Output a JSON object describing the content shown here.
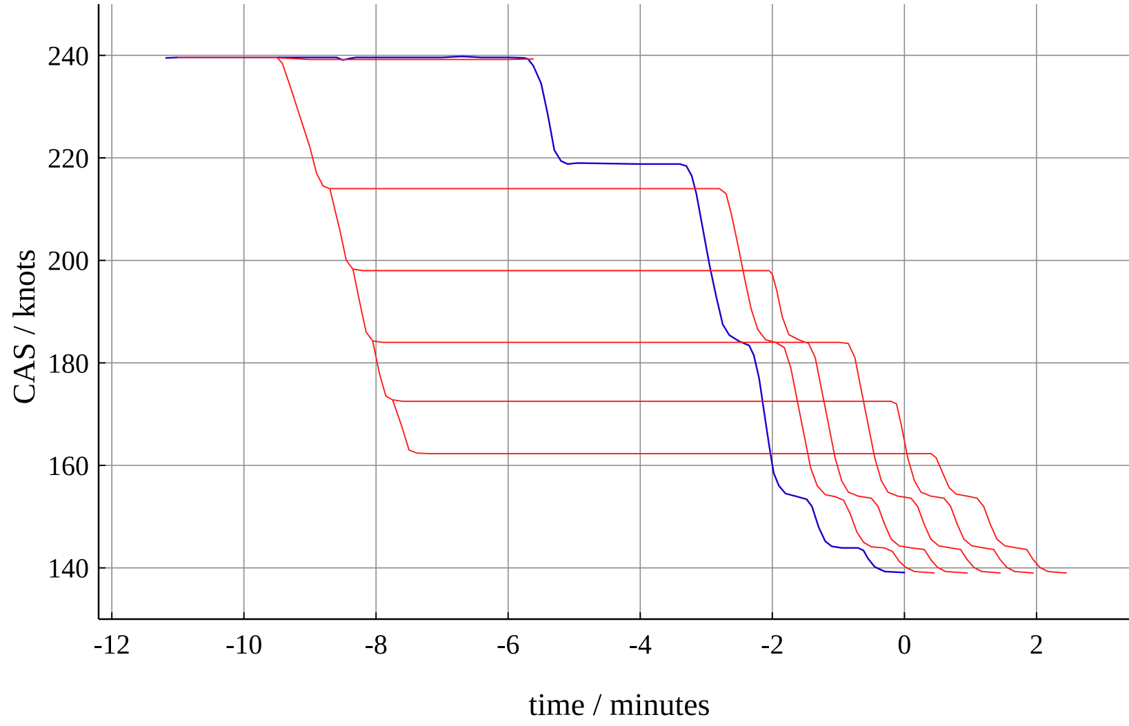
{
  "chart_data": {
    "type": "line",
    "title": "",
    "xlabel": "time / minutes",
    "ylabel": "CAS / knots",
    "xlim": [
      -12.2,
      3.4
    ],
    "ylim": [
      130,
      250
    ],
    "xticks": [
      -12,
      -10,
      -8,
      -6,
      -4,
      -2,
      0,
      2
    ],
    "xtick_labels": [
      "-12",
      "-10",
      "-8",
      "-6",
      "-4",
      "-2",
      "0",
      "2"
    ],
    "yticks": [
      140,
      160,
      180,
      200,
      220,
      240
    ],
    "ytick_labels": [
      "140",
      "160",
      "180",
      "200",
      "220",
      "240"
    ],
    "grid": true,
    "legend": "none",
    "colors": {
      "grid": "#8c8c8c",
      "axis": "#000000",
      "blue": "#1a00cc",
      "red": "#ff1a1a"
    },
    "series": [
      {
        "color": "blue",
        "points": [
          [
            -11.18,
            239.5
          ],
          [
            -11.0,
            239.6
          ],
          [
            -10.0,
            239.6
          ],
          [
            -9.0,
            239.6
          ],
          [
            -8.6,
            239.6
          ],
          [
            -8.5,
            239.1
          ],
          [
            -8.4,
            239.4
          ],
          [
            -8.3,
            239.6
          ],
          [
            -7.0,
            239.6
          ],
          [
            -6.7,
            239.8
          ],
          [
            -6.4,
            239.6
          ],
          [
            -6.0,
            239.6
          ],
          [
            -5.75,
            239.5
          ],
          [
            -5.7,
            239.3
          ],
          [
            -5.62,
            238.0
          ],
          [
            -5.5,
            234.5
          ],
          [
            -5.4,
            228.5
          ],
          [
            -5.3,
            221.5
          ],
          [
            -5.2,
            219.4
          ],
          [
            -5.1,
            218.8
          ],
          [
            -4.95,
            219.0
          ],
          [
            -4.5,
            218.9
          ],
          [
            -4.0,
            218.8
          ],
          [
            -3.4,
            218.8
          ],
          [
            -3.3,
            218.4
          ],
          [
            -3.22,
            216.5
          ],
          [
            -3.15,
            213.0
          ],
          [
            -3.05,
            206.0
          ],
          [
            -2.95,
            199.0
          ],
          [
            -2.85,
            193.0
          ],
          [
            -2.75,
            187.5
          ],
          [
            -2.65,
            185.4
          ],
          [
            -2.5,
            184.2
          ],
          [
            -2.35,
            183.4
          ],
          [
            -2.28,
            181.5
          ],
          [
            -2.2,
            177.0
          ],
          [
            -2.12,
            170.0
          ],
          [
            -2.05,
            164.0
          ],
          [
            -1.98,
            158.5
          ],
          [
            -1.9,
            156.0
          ],
          [
            -1.8,
            154.5
          ],
          [
            -1.65,
            154.0
          ],
          [
            -1.48,
            153.4
          ],
          [
            -1.4,
            152.0
          ],
          [
            -1.3,
            148.0
          ],
          [
            -1.2,
            145.2
          ],
          [
            -1.1,
            144.2
          ],
          [
            -0.95,
            143.9
          ],
          [
            -0.7,
            143.9
          ],
          [
            -0.62,
            143.4
          ],
          [
            -0.55,
            141.8
          ],
          [
            -0.45,
            140.2
          ],
          [
            -0.3,
            139.3
          ],
          [
            0.0,
            139.1
          ]
        ]
      },
      {
        "color": "red",
        "points": [
          [
            -9.45,
            239.5
          ],
          [
            -9.0,
            239.2
          ],
          [
            -8.0,
            239.2
          ],
          [
            -7.0,
            239.2
          ],
          [
            -6.0,
            239.2
          ],
          [
            -5.62,
            239.3
          ]
        ]
      },
      {
        "color": "red",
        "points": [
          [
            -11.0,
            239.6
          ],
          [
            -9.5,
            239.6
          ],
          [
            -9.42,
            238.5
          ],
          [
            -9.3,
            234.0
          ],
          [
            -9.0,
            222.0
          ],
          [
            -8.9,
            217.0
          ],
          [
            -8.8,
            214.5
          ],
          [
            -8.7,
            214.0
          ],
          [
            -6.0,
            214.0
          ],
          [
            -4.0,
            214.0
          ],
          [
            -2.8,
            214.0
          ],
          [
            -2.7,
            213.0
          ],
          [
            -2.62,
            209.0
          ],
          [
            -2.52,
            203.0
          ],
          [
            -2.42,
            196.5
          ],
          [
            -2.32,
            190.5
          ],
          [
            -2.22,
            186.5
          ],
          [
            -2.1,
            184.5
          ],
          [
            -1.95,
            184.0
          ],
          [
            -1.82,
            183.0
          ],
          [
            -1.72,
            179.0
          ],
          [
            -1.62,
            172.5
          ],
          [
            -1.52,
            166.0
          ],
          [
            -1.42,
            159.5
          ],
          [
            -1.32,
            156.0
          ],
          [
            -1.2,
            154.3
          ],
          [
            -1.05,
            153.9
          ],
          [
            -0.92,
            153.2
          ],
          [
            -0.82,
            150.5
          ],
          [
            -0.72,
            147.0
          ],
          [
            -0.62,
            145.0
          ],
          [
            -0.5,
            144.1
          ],
          [
            -0.3,
            143.9
          ],
          [
            -0.18,
            143.2
          ],
          [
            -0.08,
            141.3
          ],
          [
            0.02,
            140.1
          ],
          [
            0.15,
            139.3
          ],
          [
            0.45,
            139.0
          ]
        ]
      },
      {
        "color": "red",
        "points": [
          [
            -8.7,
            214.0
          ],
          [
            -8.55,
            206.0
          ],
          [
            -8.45,
            200.0
          ],
          [
            -8.35,
            198.3
          ],
          [
            -8.2,
            198.0
          ],
          [
            -6.0,
            198.0
          ],
          [
            -4.0,
            198.0
          ],
          [
            -2.05,
            198.0
          ],
          [
            -2.0,
            197.3
          ],
          [
            -1.93,
            194.0
          ],
          [
            -1.85,
            189.0
          ],
          [
            -1.75,
            185.5
          ],
          [
            -1.6,
            184.5
          ],
          [
            -1.45,
            183.8
          ],
          [
            -1.35,
            181.0
          ],
          [
            -1.25,
            174.5
          ],
          [
            -1.15,
            168.0
          ],
          [
            -1.05,
            161.5
          ],
          [
            -0.95,
            157.0
          ],
          [
            -0.85,
            154.8
          ],
          [
            -0.7,
            154.0
          ],
          [
            -0.5,
            153.6
          ],
          [
            -0.4,
            152.0
          ],
          [
            -0.3,
            148.5
          ],
          [
            -0.2,
            145.6
          ],
          [
            -0.08,
            144.3
          ],
          [
            0.1,
            143.9
          ],
          [
            0.3,
            143.6
          ],
          [
            0.4,
            141.6
          ],
          [
            0.5,
            140.1
          ],
          [
            0.62,
            139.3
          ],
          [
            0.95,
            139.0
          ]
        ]
      },
      {
        "color": "red",
        "points": [
          [
            -8.35,
            198.3
          ],
          [
            -8.25,
            192.0
          ],
          [
            -8.15,
            186.0
          ],
          [
            -8.05,
            184.3
          ],
          [
            -7.9,
            184.0
          ],
          [
            -6.0,
            184.0
          ],
          [
            -4.0,
            184.0
          ],
          [
            -2.0,
            184.0
          ],
          [
            -1.0,
            184.0
          ],
          [
            -0.85,
            183.8
          ],
          [
            -0.75,
            181.0
          ],
          [
            -0.65,
            174.5
          ],
          [
            -0.55,
            168.0
          ],
          [
            -0.45,
            161.5
          ],
          [
            -0.35,
            157.0
          ],
          [
            -0.25,
            154.8
          ],
          [
            -0.1,
            154.0
          ],
          [
            0.1,
            153.6
          ],
          [
            0.2,
            152.0
          ],
          [
            0.3,
            148.5
          ],
          [
            0.4,
            145.6
          ],
          [
            0.52,
            144.3
          ],
          [
            0.7,
            143.9
          ],
          [
            0.85,
            143.6
          ],
          [
            0.95,
            141.6
          ],
          [
            1.05,
            140.1
          ],
          [
            1.17,
            139.3
          ],
          [
            1.45,
            139.0
          ]
        ]
      },
      {
        "color": "red",
        "points": [
          [
            -8.05,
            184.3
          ],
          [
            -7.95,
            178.0
          ],
          [
            -7.85,
            173.5
          ],
          [
            -7.75,
            172.8
          ],
          [
            -7.6,
            172.5
          ],
          [
            -6.0,
            172.5
          ],
          [
            -4.0,
            172.5
          ],
          [
            -2.0,
            172.5
          ],
          [
            -0.2,
            172.5
          ],
          [
            -0.12,
            172.0
          ],
          [
            -0.05,
            168.0
          ],
          [
            0.05,
            161.5
          ],
          [
            0.15,
            157.0
          ],
          [
            0.25,
            154.8
          ],
          [
            0.4,
            154.0
          ],
          [
            0.6,
            153.6
          ],
          [
            0.7,
            152.0
          ],
          [
            0.8,
            148.5
          ],
          [
            0.9,
            145.6
          ],
          [
            1.02,
            144.3
          ],
          [
            1.2,
            143.9
          ],
          [
            1.35,
            143.6
          ],
          [
            1.45,
            141.6
          ],
          [
            1.55,
            140.1
          ],
          [
            1.67,
            139.3
          ],
          [
            1.95,
            139.0
          ]
        ]
      },
      {
        "color": "red",
        "points": [
          [
            -7.75,
            172.8
          ],
          [
            -7.62,
            168.0
          ],
          [
            -7.5,
            163.0
          ],
          [
            -7.38,
            162.4
          ],
          [
            -7.2,
            162.3
          ],
          [
            -6.0,
            162.3
          ],
          [
            -4.0,
            162.3
          ],
          [
            -2.0,
            162.3
          ],
          [
            0.0,
            162.3
          ],
          [
            0.4,
            162.3
          ],
          [
            0.48,
            161.5
          ],
          [
            0.58,
            158.5
          ],
          [
            0.68,
            155.6
          ],
          [
            0.78,
            154.4
          ],
          [
            0.95,
            154.0
          ],
          [
            1.1,
            153.6
          ],
          [
            1.2,
            152.0
          ],
          [
            1.3,
            148.5
          ],
          [
            1.4,
            145.6
          ],
          [
            1.52,
            144.3
          ],
          [
            1.7,
            143.9
          ],
          [
            1.85,
            143.6
          ],
          [
            1.95,
            141.6
          ],
          [
            2.05,
            140.1
          ],
          [
            2.17,
            139.3
          ],
          [
            2.45,
            139.0
          ]
        ]
      }
    ]
  }
}
